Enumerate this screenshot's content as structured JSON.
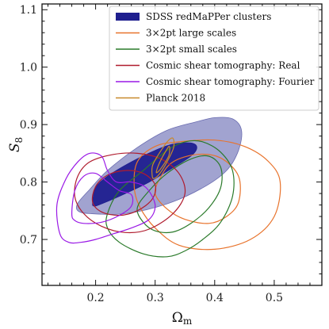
{
  "chart_data": {
    "type": "contour",
    "xlabel": "Ω",
    "xlabel_sub": "m",
    "ylabel": "S",
    "ylabel_sub": "8",
    "xlim": [
      0.11,
      0.58
    ],
    "ylim": [
      0.62,
      1.11
    ],
    "xticks": [
      0.2,
      0.3,
      0.4,
      0.5
    ],
    "xtick_labels": [
      "0.2",
      "0.3",
      "0.4",
      "0.5"
    ],
    "yticks": [
      0.7,
      0.8,
      0.9,
      1.0,
      1.1
    ],
    "ytick_labels": [
      "0.7",
      "0.8",
      "0.9",
      "1.0",
      "1.1"
    ],
    "grid": false,
    "legend_position": "top-right",
    "series": [
      {
        "name": "SDSS redMaPPer clusters",
        "style": "filled",
        "color": "#1f1f8f",
        "outer_color": "#8a8cc4",
        "contours": [
          [
            [
              0.17,
              0.763
            ],
            [
              0.19,
              0.787
            ],
            [
              0.22,
              0.82
            ],
            [
              0.27,
              0.86
            ],
            [
              0.32,
              0.89
            ],
            [
              0.37,
              0.905
            ],
            [
              0.4,
              0.912
            ],
            [
              0.43,
              0.91
            ],
            [
              0.445,
              0.89
            ],
            [
              0.44,
              0.855
            ],
            [
              0.42,
              0.82
            ],
            [
              0.38,
              0.79
            ],
            [
              0.32,
              0.762
            ],
            [
              0.25,
              0.745
            ],
            [
              0.19,
              0.745
            ],
            [
              0.17,
              0.75
            ]
          ],
          [
            [
              0.195,
              0.765
            ],
            [
              0.2,
              0.79
            ],
            [
              0.22,
              0.81
            ],
            [
              0.26,
              0.835
            ],
            [
              0.3,
              0.855
            ],
            [
              0.33,
              0.866
            ],
            [
              0.36,
              0.868
            ],
            [
              0.37,
              0.86
            ],
            [
              0.36,
              0.845
            ],
            [
              0.33,
              0.825
            ],
            [
              0.29,
              0.8
            ],
            [
              0.25,
              0.78
            ],
            [
              0.21,
              0.762
            ],
            [
              0.197,
              0.758
            ]
          ]
        ]
      },
      {
        "name": "3×2pt large scales",
        "style": "line",
        "color": "#e8732c",
        "contours": [
          [
            [
              0.265,
              0.79
            ],
            [
              0.27,
              0.835
            ],
            [
              0.3,
              0.862
            ],
            [
              0.34,
              0.87
            ],
            [
              0.4,
              0.873
            ],
            [
              0.45,
              0.862
            ],
            [
              0.49,
              0.836
            ],
            [
              0.51,
              0.8
            ],
            [
              0.5,
              0.74
            ],
            [
              0.46,
              0.7
            ],
            [
              0.4,
              0.683
            ],
            [
              0.34,
              0.69
            ],
            [
              0.3,
              0.72
            ],
            [
              0.275,
              0.755
            ]
          ],
          [
            [
              0.3,
              0.78
            ],
            [
              0.31,
              0.81
            ],
            [
              0.33,
              0.835
            ],
            [
              0.37,
              0.848
            ],
            [
              0.41,
              0.842
            ],
            [
              0.44,
              0.81
            ],
            [
              0.44,
              0.765
            ],
            [
              0.42,
              0.74
            ],
            [
              0.39,
              0.728
            ],
            [
              0.35,
              0.735
            ],
            [
              0.32,
              0.753
            ]
          ]
        ]
      },
      {
        "name": "3×2pt small scales",
        "style": "line",
        "color": "#2a7a2a",
        "contours": [
          [
            [
              0.22,
              0.745
            ],
            [
              0.24,
              0.785
            ],
            [
              0.28,
              0.82
            ],
            [
              0.32,
              0.855
            ],
            [
              0.35,
              0.87
            ],
            [
              0.38,
              0.87
            ],
            [
              0.41,
              0.852
            ],
            [
              0.43,
              0.82
            ],
            [
              0.43,
              0.775
            ],
            [
              0.41,
              0.73
            ],
            [
              0.38,
              0.7
            ],
            [
              0.35,
              0.68
            ],
            [
              0.32,
              0.67
            ],
            [
              0.28,
              0.675
            ],
            [
              0.24,
              0.695
            ],
            [
              0.22,
              0.72
            ]
          ],
          [
            [
              0.27,
              0.755
            ],
            [
              0.29,
              0.785
            ],
            [
              0.32,
              0.815
            ],
            [
              0.36,
              0.84
            ],
            [
              0.39,
              0.845
            ],
            [
              0.41,
              0.826
            ],
            [
              0.41,
              0.79
            ],
            [
              0.39,
              0.755
            ],
            [
              0.36,
              0.728
            ],
            [
              0.33,
              0.713
            ],
            [
              0.3,
              0.715
            ],
            [
              0.28,
              0.73
            ]
          ]
        ]
      },
      {
        "name": "Cosmic shear tomography: Real",
        "style": "line",
        "color": "#b01c2e",
        "contours": [
          [
            [
              0.165,
              0.775
            ],
            [
              0.17,
              0.81
            ],
            [
              0.19,
              0.835
            ],
            [
              0.23,
              0.848
            ],
            [
              0.27,
              0.85
            ],
            [
              0.31,
              0.84
            ],
            [
              0.34,
              0.815
            ],
            [
              0.35,
              0.78
            ],
            [
              0.33,
              0.745
            ],
            [
              0.29,
              0.718
            ],
            [
              0.25,
              0.712
            ],
            [
              0.21,
              0.723
            ],
            [
              0.18,
              0.745
            ]
          ],
          [
            [
              0.195,
              0.765
            ],
            [
              0.2,
              0.792
            ],
            [
              0.22,
              0.812
            ],
            [
              0.25,
              0.82
            ],
            [
              0.28,
              0.815
            ],
            [
              0.3,
              0.795
            ],
            [
              0.295,
              0.77
            ],
            [
              0.27,
              0.75
            ],
            [
              0.24,
              0.742
            ],
            [
              0.21,
              0.748
            ]
          ]
        ]
      },
      {
        "name": "Cosmic shear tomography: Fourier",
        "style": "line",
        "color": "#9a19e6",
        "contours": [
          [
            [
              0.14,
              0.71
            ],
            [
              0.135,
              0.76
            ],
            [
              0.15,
              0.805
            ],
            [
              0.17,
              0.835
            ],
            [
              0.19,
              0.85
            ],
            [
              0.21,
              0.845
            ],
            [
              0.22,
              0.82
            ],
            [
              0.235,
              0.8
            ],
            [
              0.26,
              0.8
            ],
            [
              0.285,
              0.79
            ],
            [
              0.3,
              0.76
            ],
            [
              0.29,
              0.735
            ],
            [
              0.26,
              0.72
            ],
            [
              0.23,
              0.71
            ],
            [
              0.2,
              0.7
            ],
            [
              0.175,
              0.695
            ],
            [
              0.155,
              0.695
            ]
          ],
          [
            [
              0.16,
              0.745
            ],
            [
              0.165,
              0.785
            ],
            [
              0.18,
              0.81
            ],
            [
              0.2,
              0.815
            ],
            [
              0.22,
              0.8
            ],
            [
              0.24,
              0.785
            ],
            [
              0.26,
              0.778
            ],
            [
              0.26,
              0.758
            ],
            [
              0.24,
              0.742
            ],
            [
              0.21,
              0.73
            ],
            [
              0.18,
              0.728
            ],
            [
              0.165,
              0.733
            ]
          ]
        ]
      },
      {
        "name": "Planck 2018",
        "style": "line",
        "color": "#c8892c",
        "contours": [
          [
            [
              0.295,
              0.812
            ],
            [
              0.296,
              0.83
            ],
            [
              0.31,
              0.855
            ],
            [
              0.322,
              0.872
            ],
            [
              0.33,
              0.876
            ],
            [
              0.331,
              0.86
            ],
            [
              0.32,
              0.835
            ],
            [
              0.308,
              0.815
            ],
            [
              0.298,
              0.806
            ]
          ],
          [
            [
              0.302,
              0.818
            ],
            [
              0.308,
              0.835
            ],
            [
              0.318,
              0.854
            ],
            [
              0.324,
              0.862
            ],
            [
              0.323,
              0.846
            ],
            [
              0.314,
              0.83
            ],
            [
              0.305,
              0.818
            ]
          ]
        ]
      }
    ]
  }
}
